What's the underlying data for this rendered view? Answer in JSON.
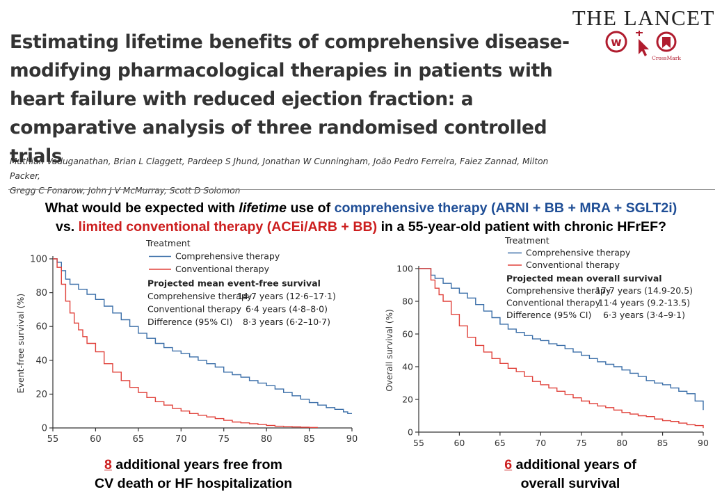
{
  "header": {
    "title": "Estimating lifetime benefits of comprehensive disease-modifying pharmacological therapies in patients with heart failure with reduced ejection fraction: a comparative analysis of three randomised controlled trials",
    "authors_line1": "Muthiah Vaduganathan, Brian L Claggett, Pardeep S Jhund, Jonathan W Cunningham, João Pedro Ferreira, Faiez Zannad, Milton Packer,",
    "authors_line2": "Gregg C Fonarow, John J V McMurray, Scott D Solomon",
    "journal": "THE LANCET",
    "crossmark": "CrossMark"
  },
  "question": {
    "p1": "What would be expected with ",
    "p2": "lifetime",
    "p3": " use of ",
    "p4": "comprehensive therapy (ARNI + BB + MRA + SGLT2i)",
    "p5": "vs. ",
    "p6": "limited conventional therapy (ACEi/ARB + BB)",
    "p7": " in a 55-year-old patient with chronic HFrEF?"
  },
  "summaries": {
    "left": {
      "num": "8",
      "rest": " additional years free from",
      "line2": "CV death or HF hospitalization"
    },
    "right": {
      "num": "6",
      "rest": " additional years of",
      "line2": "overall survival"
    }
  },
  "colors": {
    "comprehensive": "#3a6ea8",
    "conventional": "#e0413a",
    "accent_blue": "#1f4e96",
    "accent_red": "#cc1e1e",
    "lancet_red": "#b01c2e"
  },
  "chart_data": [
    {
      "type": "line",
      "ylabel": "Event-free survival (%)",
      "xlabel": "",
      "xlim": [
        55,
        90
      ],
      "ylim": [
        0,
        100
      ],
      "xticks": [
        55,
        60,
        65,
        70,
        75,
        80,
        85,
        90
      ],
      "yticks": [
        0,
        20,
        40,
        60,
        80,
        100
      ],
      "legend_title": "Treatment",
      "series": [
        {
          "name": "Comprehensive therapy",
          "color": "#3a6ea8",
          "x": [
            55,
            55.5,
            56,
            56.5,
            57,
            58,
            59,
            60,
            61,
            62,
            63,
            64,
            65,
            66,
            67,
            68,
            69,
            70,
            71,
            72,
            73,
            74,
            75,
            76,
            77,
            78,
            79,
            80,
            81,
            82,
            83,
            84,
            85,
            86,
            87,
            88,
            89,
            89.5,
            90
          ],
          "y": [
            100,
            98,
            93,
            88,
            85,
            82,
            79,
            76,
            72,
            68,
            64,
            60,
            56,
            53,
            50,
            47.5,
            45.5,
            44,
            42,
            40,
            38,
            36,
            33,
            31.5,
            30,
            28,
            26.5,
            25,
            23,
            21,
            19,
            17,
            15,
            13.5,
            12,
            11,
            9.5,
            8.5,
            8.5
          ]
        },
        {
          "name": "Conventional therapy",
          "color": "#e0413a",
          "x": [
            55,
            55.5,
            56,
            56.5,
            57,
            57.5,
            58,
            58.5,
            59,
            60,
            61,
            62,
            63,
            64,
            65,
            66,
            67,
            68,
            69,
            70,
            71,
            72,
            73,
            74,
            75,
            76,
            77,
            78,
            79,
            80,
            81,
            82,
            83,
            84,
            85,
            86
          ],
          "y": [
            100,
            95,
            85,
            75,
            68,
            62,
            58,
            54,
            50,
            45,
            38,
            33,
            28,
            24,
            21,
            18,
            15.5,
            13.5,
            11.5,
            10,
            8.5,
            7.5,
            6.5,
            5.5,
            4.5,
            3.5,
            3,
            2.5,
            2,
            1.5,
            1,
            0.8,
            0.6,
            0.4,
            0.3,
            0.3
          ]
        }
      ],
      "stats": {
        "heading": "Projected mean event-free survival",
        "rows": [
          {
            "label": "Comprehensive therapy",
            "value": "14·7 years (12·6–17·1)"
          },
          {
            "label": "Conventional therapy",
            "value": "6·4 years (4·8–8·0)"
          },
          {
            "label": "Difference (95% CI)",
            "value": "8·3 years (6·2–10·7)"
          }
        ]
      }
    },
    {
      "type": "line",
      "ylabel": "Overall survival (%)",
      "xlabel": "",
      "xlim": [
        55,
        90
      ],
      "ylim": [
        0,
        100
      ],
      "xticks": [
        55,
        60,
        65,
        70,
        75,
        80,
        85,
        90
      ],
      "yticks": [
        0,
        20,
        40,
        60,
        80,
        100
      ],
      "legend_title": "Treatment",
      "series": [
        {
          "name": "Comprehensive therapy",
          "color": "#3a6ea8",
          "x": [
            55,
            56,
            56.5,
            57,
            58,
            59,
            60,
            61,
            62,
            63,
            64,
            65,
            66,
            67,
            68,
            69,
            70,
            71,
            72,
            73,
            74,
            75,
            76,
            77,
            78,
            79,
            80,
            81,
            82,
            83,
            84,
            85,
            86,
            87,
            88,
            89,
            89.5,
            90
          ],
          "y": [
            100,
            100,
            96,
            94,
            91,
            88,
            85,
            82,
            78,
            74,
            70,
            66,
            63,
            61,
            59,
            57,
            56,
            54,
            53,
            51,
            49,
            47,
            45,
            43,
            41.5,
            40,
            38,
            36,
            34,
            31.5,
            30,
            29,
            27,
            25,
            23.5,
            19,
            19,
            13.5
          ]
        },
        {
          "name": "Conventional therapy",
          "color": "#e0413a",
          "x": [
            55,
            56,
            56.5,
            57,
            57.5,
            58,
            59,
            60,
            61,
            62,
            63,
            64,
            65,
            66,
            67,
            68,
            69,
            70,
            71,
            72,
            73,
            74,
            75,
            76,
            77,
            78,
            79,
            80,
            81,
            82,
            83,
            84,
            85,
            86,
            87,
            88,
            89,
            90
          ],
          "y": [
            100,
            100,
            93,
            88,
            84,
            80,
            72,
            65,
            58,
            53,
            49,
            45,
            42,
            39,
            37,
            34,
            31,
            29,
            27,
            25,
            23,
            21,
            19,
            17.5,
            16,
            15,
            13.5,
            12,
            11,
            10,
            9.5,
            8,
            7,
            6.5,
            5.5,
            4.5,
            4,
            2.5
          ]
        }
      ],
      "stats": {
        "heading": "Projected mean overall survival",
        "rows": [
          {
            "label": "Comprehensive therapy",
            "value": "17·7 years (14.9-20.5)"
          },
          {
            "label": "Conventional therapy",
            "value": "11·4 years (9.2-13.5)"
          },
          {
            "label": "Difference (95% CI)",
            "value": "6·3 years (3·4–9·1)"
          }
        ]
      }
    }
  ]
}
